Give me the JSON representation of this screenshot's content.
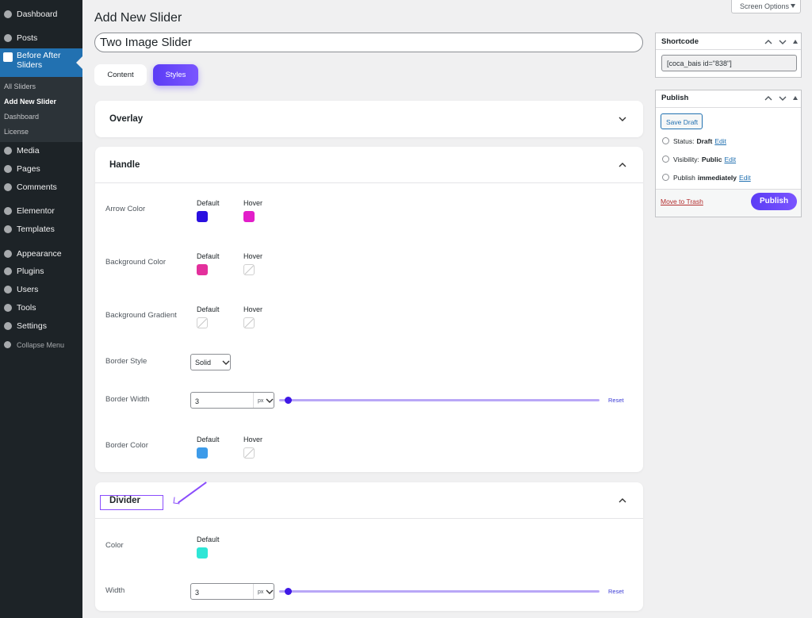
{
  "sidebar": {
    "menu": [
      "Dashboard",
      "Posts",
      "Before After Sliders",
      "Media",
      "Pages",
      "Comments",
      "Elementor",
      "Templates",
      "Appearance",
      "Plugins",
      "Users",
      "Tools",
      "Settings"
    ],
    "submenu": [
      "All Sliders",
      "Add New Slider",
      "Dashboard",
      "License"
    ],
    "collapse": "Collapse Menu"
  },
  "header": {
    "title": "Add New Slider",
    "screen_options": "Screen Options"
  },
  "slider_title": "Two Image Slider",
  "tabs": [
    "Content",
    "Styles"
  ],
  "panels": [
    {
      "title": "Overlay"
    },
    {
      "title": "Handle",
      "rows": [
        {
          "label": "Arrow Color",
          "swatches": [
            {
              "state": "Default",
              "color": "#2a10e0"
            },
            {
              "state": "Hover",
              "color": "#e21ec9"
            }
          ]
        },
        {
          "label": "Background Color",
          "swatches": [
            {
              "state": "Default",
              "color": "#e3309c"
            },
            {
              "state": "Hover"
            }
          ]
        },
        {
          "label": "Background Gradient",
          "swatches": [
            {
              "state": "Default"
            },
            {
              "state": "Hover"
            }
          ]
        },
        {
          "label": "Border Style",
          "select": "Solid"
        },
        {
          "label": "Border Width",
          "value": 3,
          "unit": "px",
          "reset": "Reset"
        },
        {
          "label": "Border Color",
          "swatches": [
            {
              "state": "Default",
              "color": "#3d9be9"
            },
            {
              "state": "Hover"
            }
          ]
        }
      ]
    },
    {
      "title": "Divider",
      "rows": [
        {
          "label": "Color",
          "swatches": [
            {
              "state": "Default",
              "color": "#2ee6d6"
            }
          ]
        },
        {
          "label": "Width",
          "value": 3,
          "unit": "px",
          "reset": "Reset"
        }
      ]
    }
  ],
  "shortcode": {
    "title": "Shortcode",
    "code": "[coca_bais id=\"838\"]"
  },
  "publish": {
    "title": "Publish",
    "save_draft": "Save Draft",
    "status": {
      "label": "Status:",
      "value": "Draft",
      "edit": "Edit"
    },
    "visibility": {
      "label": "Visibility:",
      "value": "Public",
      "edit": "Edit"
    },
    "schedule": {
      "label": "Publish",
      "value": "immediately",
      "edit": "Edit"
    },
    "trash": "Move to Trash",
    "button": "Publish"
  }
}
